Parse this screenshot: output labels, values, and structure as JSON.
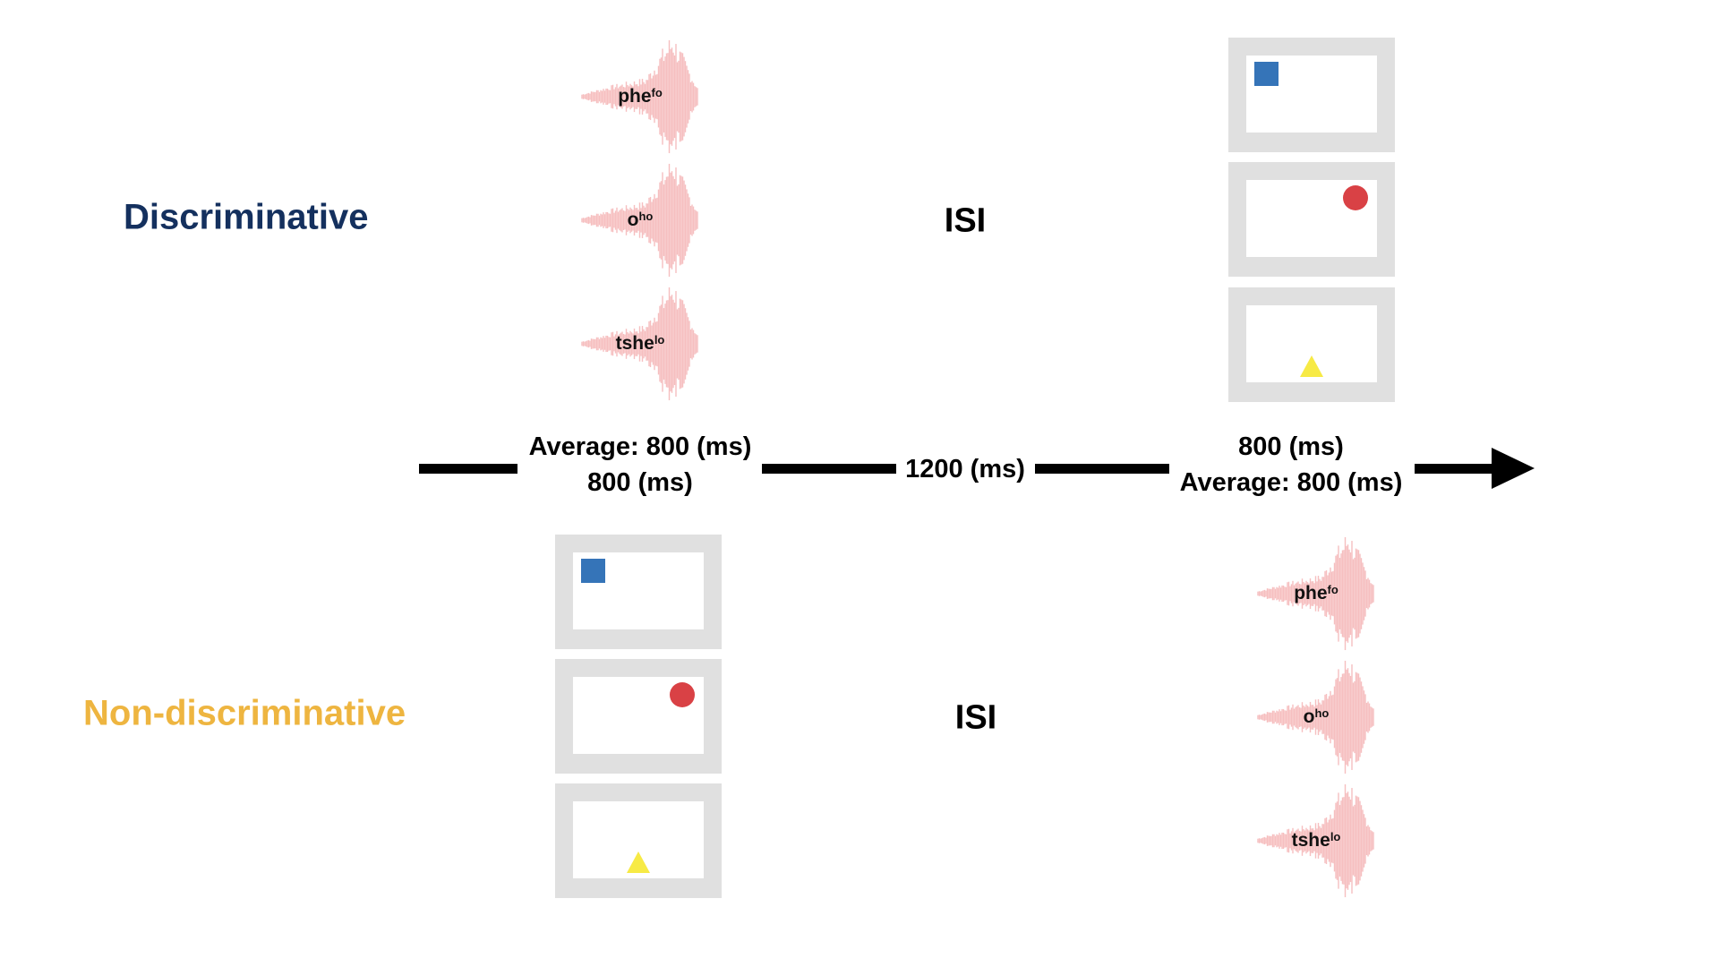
{
  "conditions": {
    "discriminative": {
      "label": "Discriminative",
      "color": "#14305e"
    },
    "non_discriminative": {
      "label": "Non-discriminative",
      "color": "#eeb540"
    }
  },
  "isi_label": "ISI",
  "timeline": {
    "first_top": "Average: 800 (ms)",
    "first_bottom": "800 (ms)",
    "middle": "1200 (ms)",
    "last_top": "800 (ms)",
    "last_bottom": "Average: 800 (ms)"
  },
  "sounds": [
    {
      "base": "phe",
      "tone": "fo"
    },
    {
      "base": "o",
      "tone": "ho"
    },
    {
      "base": "tshe",
      "tone": "lo"
    }
  ],
  "shapes": [
    {
      "icon": "square-icon",
      "color": "#3574b8",
      "position": "top-left"
    },
    {
      "icon": "circle-icon",
      "color": "#d94145",
      "position": "top-right"
    },
    {
      "icon": "triangle-icon",
      "color": "#f7ea45",
      "position": "bottom-center"
    }
  ]
}
